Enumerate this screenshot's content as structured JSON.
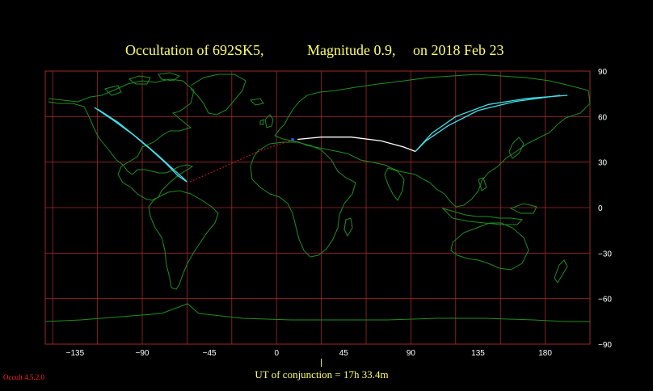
{
  "title": {
    "object": "Occultation  of  692SK5,",
    "magnitude": "Magnitude 0.9,",
    "date": "on  2018 Feb 23"
  },
  "map": {
    "lon_range": [
      -155,
      210
    ],
    "lat_range": [
      -90,
      90
    ],
    "grid_lon_step": 30,
    "grid_lat_step": 30,
    "x_ticks": [
      "−135",
      "−90",
      "−45",
      "0",
      "45",
      "90",
      "135",
      "180"
    ],
    "x_tick_values": [
      -135,
      -90,
      -45,
      0,
      45,
      90,
      135,
      180
    ],
    "y_ticks": [
      "90",
      "60",
      "30",
      "0",
      "−30",
      "−60",
      "−90"
    ],
    "y_tick_values": [
      90,
      60,
      30,
      0,
      -30,
      -60,
      -90
    ],
    "colors": {
      "grid": "#a02828",
      "coast": "#1f8f1f",
      "path_limits": "#40e0e8",
      "center_line": "#ffffff",
      "night_path": "#d02020"
    }
  },
  "paths": {
    "west_limit": [
      [
        -122,
        66
      ],
      [
        -110,
        58
      ],
      [
        -96,
        48
      ],
      [
        -84,
        38
      ],
      [
        -74,
        29
      ],
      [
        -66,
        21
      ],
      [
        -60,
        17
      ],
      [
        -62,
        19
      ],
      [
        -70,
        26
      ],
      [
        -80,
        35
      ],
      [
        -92,
        45
      ],
      [
        -106,
        56
      ],
      [
        -120,
        65
      ]
    ],
    "night_segment": [
      [
        -58,
        17
      ],
      [
        -35,
        27
      ],
      [
        -10,
        38
      ],
      [
        12,
        45
      ]
    ],
    "center_line": [
      [
        14,
        45
      ],
      [
        30,
        46.5
      ],
      [
        50,
        46.5
      ],
      [
        70,
        44
      ],
      [
        85,
        40
      ],
      [
        93,
        37
      ]
    ],
    "east_limit_outer": [
      [
        93,
        37
      ],
      [
        100,
        44
      ],
      [
        115,
        54
      ],
      [
        135,
        64
      ],
      [
        160,
        70
      ],
      [
        190,
        74
      ]
    ],
    "east_limit_inner": [
      [
        93,
        37
      ],
      [
        104,
        49
      ],
      [
        120,
        60
      ],
      [
        142,
        68
      ],
      [
        168,
        72
      ],
      [
        195,
        74
      ]
    ]
  },
  "conjunction": {
    "label": "UT of conjunction = 17h 33.4m",
    "lon": 30
  },
  "version": "Occult 4.5.2.0"
}
